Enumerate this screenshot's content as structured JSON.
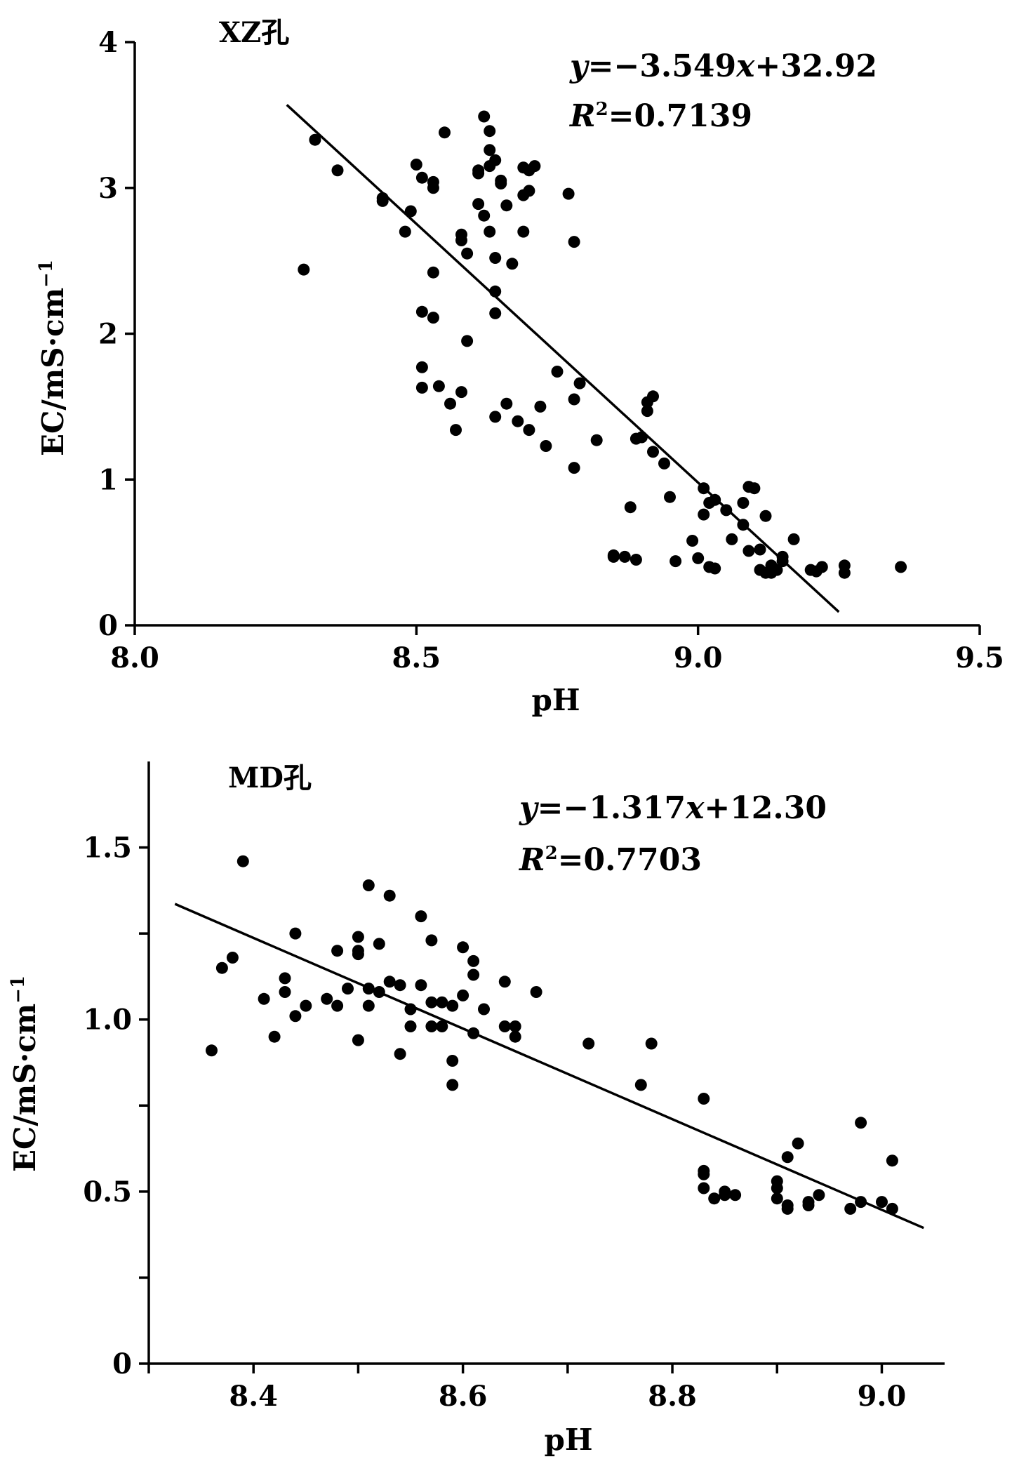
{
  "chart_data": [
    {
      "type": "scatter",
      "id": "xz",
      "title": "XZ孔",
      "xlabel": "pH",
      "ylabel": "EC/mS·cm",
      "ylabel_sup": "−1",
      "xlim": [
        8.0,
        9.5
      ],
      "ylim": [
        0,
        4
      ],
      "x_ticks": [
        8.0,
        8.5,
        9.0,
        9.5
      ],
      "x_tick_labels": [
        "8.0",
        "8.5",
        "9.0",
        "9.5"
      ],
      "y_ticks": [
        0,
        1,
        2,
        3,
        4
      ],
      "y_tick_labels": [
        "0",
        "1",
        "2",
        "3",
        "4"
      ],
      "equation": {
        "y_var": "y",
        "rhs_a": "=−3.549",
        "x_var": "x",
        "rhs_b": "+32.92",
        "r_var": "R",
        "r_sup": "2",
        "r_value": "=0.7139"
      },
      "fit": {
        "slope": -3.549,
        "intercept": 32.92,
        "x_range": [
          8.27,
          9.25
        ]
      },
      "points": [
        [
          8.3,
          2.44
        ],
        [
          8.32,
          3.33
        ],
        [
          8.36,
          3.12
        ],
        [
          8.44,
          2.93
        ],
        [
          8.44,
          2.91
        ],
        [
          8.48,
          2.7
        ],
        [
          8.49,
          2.84
        ],
        [
          8.5,
          3.16
        ],
        [
          8.51,
          3.07
        ],
        [
          8.53,
          3.04
        ],
        [
          8.53,
          3.0
        ],
        [
          8.53,
          2.42
        ],
        [
          8.51,
          2.15
        ],
        [
          8.53,
          2.11
        ],
        [
          8.51,
          1.77
        ],
        [
          8.51,
          1.63
        ],
        [
          8.54,
          1.64
        ],
        [
          8.56,
          1.52
        ],
        [
          8.57,
          1.34
        ],
        [
          8.58,
          1.6
        ],
        [
          8.55,
          3.38
        ],
        [
          8.58,
          2.68
        ],
        [
          8.58,
          2.64
        ],
        [
          8.59,
          2.55
        ],
        [
          8.59,
          1.95
        ],
        [
          8.61,
          3.1
        ],
        [
          8.61,
          3.12
        ],
        [
          8.61,
          2.89
        ],
        [
          8.62,
          3.49
        ],
        [
          8.62,
          2.81
        ],
        [
          8.63,
          3.39
        ],
        [
          8.63,
          3.26
        ],
        [
          8.63,
          3.15
        ],
        [
          8.64,
          3.19
        ],
        [
          8.63,
          2.7
        ],
        [
          8.64,
          2.52
        ],
        [
          8.64,
          2.29
        ],
        [
          8.64,
          2.14
        ],
        [
          8.64,
          1.43
        ],
        [
          8.65,
          3.05
        ],
        [
          8.65,
          3.03
        ],
        [
          8.66,
          2.88
        ],
        [
          8.66,
          1.52
        ],
        [
          8.67,
          2.48
        ],
        [
          8.68,
          1.4
        ],
        [
          8.69,
          3.14
        ],
        [
          8.69,
          2.95
        ],
        [
          8.7,
          3.12
        ],
        [
          8.7,
          2.98
        ],
        [
          8.69,
          2.7
        ],
        [
          8.7,
          1.34
        ],
        [
          8.71,
          3.15
        ],
        [
          8.72,
          1.5
        ],
        [
          8.73,
          1.23
        ],
        [
          8.75,
          1.74
        ],
        [
          8.77,
          2.96
        ],
        [
          8.78,
          2.63
        ],
        [
          8.78,
          1.55
        ],
        [
          8.78,
          1.08
        ],
        [
          8.79,
          1.66
        ],
        [
          8.82,
          1.27
        ],
        [
          8.85,
          0.48
        ],
        [
          8.85,
          0.47
        ],
        [
          8.87,
          0.47
        ],
        [
          8.88,
          0.81
        ],
        [
          8.89,
          1.28
        ],
        [
          8.89,
          0.45
        ],
        [
          8.9,
          1.29
        ],
        [
          8.91,
          1.53
        ],
        [
          8.91,
          1.47
        ],
        [
          8.92,
          1.57
        ],
        [
          8.92,
          1.19
        ],
        [
          8.94,
          1.11
        ],
        [
          8.95,
          0.88
        ],
        [
          8.96,
          0.44
        ],
        [
          8.99,
          0.58
        ],
        [
          9.0,
          0.46
        ],
        [
          9.01,
          0.94
        ],
        [
          9.01,
          0.76
        ],
        [
          9.02,
          0.84
        ],
        [
          9.02,
          0.4
        ],
        [
          9.03,
          0.86
        ],
        [
          9.03,
          0.39
        ],
        [
          9.05,
          0.79
        ],
        [
          9.06,
          0.59
        ],
        [
          9.08,
          0.84
        ],
        [
          9.08,
          0.69
        ],
        [
          9.09,
          0.95
        ],
        [
          9.1,
          0.94
        ],
        [
          9.09,
          0.51
        ],
        [
          9.11,
          0.52
        ],
        [
          9.11,
          0.38
        ],
        [
          9.12,
          0.75
        ],
        [
          9.12,
          0.36
        ],
        [
          9.13,
          0.36
        ],
        [
          9.13,
          0.41
        ],
        [
          9.14,
          0.38
        ],
        [
          9.15,
          0.47
        ],
        [
          9.15,
          0.44
        ],
        [
          9.17,
          0.59
        ],
        [
          9.2,
          0.38
        ],
        [
          9.21,
          0.37
        ],
        [
          9.22,
          0.4
        ],
        [
          9.26,
          0.41
        ],
        [
          9.26,
          0.36
        ],
        [
          9.36,
          0.4
        ]
      ]
    },
    {
      "type": "scatter",
      "id": "md",
      "title": "MD孔",
      "xlabel": "pH",
      "ylabel": "EC/mS·cm",
      "ylabel_sup": "−1",
      "xlim": [
        8.3,
        9.06
      ],
      "ylim": [
        0,
        1.75
      ],
      "x_ticks": [
        8.4,
        8.6,
        8.8,
        9.0
      ],
      "x_tick_labels": [
        "8.4",
        "8.6",
        "8.8",
        "9.0"
      ],
      "x_minor_ticks": [
        8.3,
        8.5,
        8.7,
        8.9
      ],
      "y_ticks": [
        0,
        0.5,
        1.0,
        1.5
      ],
      "y_tick_labels": [
        "0",
        "0.5",
        "1.0",
        "1.5"
      ],
      "y_minor_ticks": [
        0.25,
        0.75,
        1.25
      ],
      "equation": {
        "y_var": "y",
        "rhs_a": "=−1.317",
        "x_var": "x",
        "rhs_b": "+12.30",
        "r_var": "R",
        "r_sup": "2",
        "r_value": "=0.7703"
      },
      "fit": {
        "slope": -1.317,
        "intercept": 12.3,
        "x_range": [
          8.325,
          9.04
        ]
      },
      "points": [
        [
          8.36,
          0.91
        ],
        [
          8.37,
          1.15
        ],
        [
          8.38,
          1.18
        ],
        [
          8.39,
          1.46
        ],
        [
          8.41,
          1.06
        ],
        [
          8.42,
          0.95
        ],
        [
          8.43,
          1.12
        ],
        [
          8.43,
          1.08
        ],
        [
          8.44,
          1.25
        ],
        [
          8.44,
          1.01
        ],
        [
          8.45,
          1.04
        ],
        [
          8.47,
          1.06
        ],
        [
          8.48,
          1.2
        ],
        [
          8.48,
          1.04
        ],
        [
          8.49,
          1.09
        ],
        [
          8.5,
          1.24
        ],
        [
          8.5,
          1.2
        ],
        [
          8.5,
          1.19
        ],
        [
          8.5,
          0.94
        ],
        [
          8.51,
          1.39
        ],
        [
          8.51,
          1.09
        ],
        [
          8.51,
          1.04
        ],
        [
          8.52,
          1.22
        ],
        [
          8.52,
          1.08
        ],
        [
          8.53,
          1.36
        ],
        [
          8.53,
          1.11
        ],
        [
          8.54,
          1.1
        ],
        [
          8.54,
          0.9
        ],
        [
          8.55,
          1.03
        ],
        [
          8.55,
          0.98
        ],
        [
          8.56,
          1.3
        ],
        [
          8.56,
          1.1
        ],
        [
          8.57,
          1.23
        ],
        [
          8.57,
          1.05
        ],
        [
          8.57,
          0.98
        ],
        [
          8.58,
          1.05
        ],
        [
          8.58,
          0.98
        ],
        [
          8.59,
          1.04
        ],
        [
          8.59,
          0.88
        ],
        [
          8.59,
          0.81
        ],
        [
          8.6,
          1.21
        ],
        [
          8.6,
          1.07
        ],
        [
          8.61,
          1.17
        ],
        [
          8.61,
          1.13
        ],
        [
          8.61,
          0.96
        ],
        [
          8.62,
          1.03
        ],
        [
          8.64,
          1.11
        ],
        [
          8.64,
          0.98
        ],
        [
          8.65,
          0.98
        ],
        [
          8.65,
          0.95
        ],
        [
          8.67,
          1.08
        ],
        [
          8.72,
          0.93
        ],
        [
          8.77,
          0.81
        ],
        [
          8.78,
          0.93
        ],
        [
          8.83,
          0.77
        ],
        [
          8.83,
          0.56
        ],
        [
          8.83,
          0.55
        ],
        [
          8.83,
          0.51
        ],
        [
          8.84,
          0.48
        ],
        [
          8.85,
          0.5
        ],
        [
          8.85,
          0.49
        ],
        [
          8.86,
          0.49
        ],
        [
          8.9,
          0.53
        ],
        [
          8.9,
          0.51
        ],
        [
          8.9,
          0.48
        ],
        [
          8.91,
          0.6
        ],
        [
          8.91,
          0.46
        ],
        [
          8.91,
          0.45
        ],
        [
          8.92,
          0.64
        ],
        [
          8.93,
          0.47
        ],
        [
          8.93,
          0.46
        ],
        [
          8.94,
          0.49
        ],
        [
          8.97,
          0.45
        ],
        [
          8.98,
          0.7
        ],
        [
          8.98,
          0.47
        ],
        [
          9.0,
          0.47
        ],
        [
          9.01,
          0.59
        ],
        [
          9.01,
          0.45
        ]
      ]
    }
  ]
}
